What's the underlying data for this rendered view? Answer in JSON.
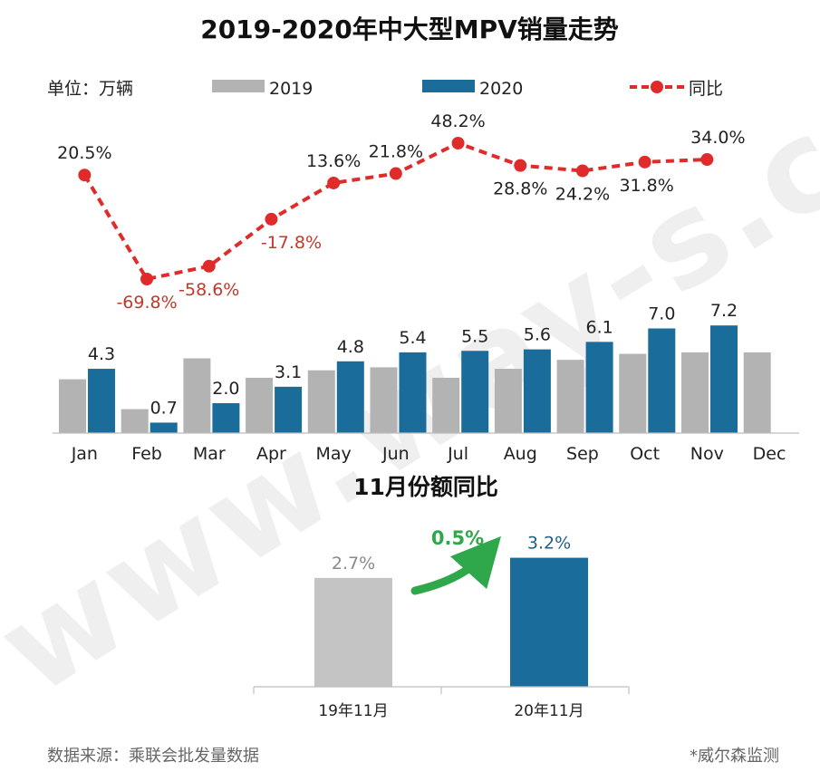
{
  "title": "2019-2020年中大型MPV销量走势",
  "unit_label": "单位：万辆",
  "legend": {
    "series_2019": "2019",
    "series_2020": "2020",
    "series_yoy": "同比"
  },
  "colors": {
    "bar_2019": "#b3b3b3",
    "bar_2020": "#1a6d9b",
    "line_yoy": "#e02b2b",
    "delta_arrow": "#2ea84b"
  },
  "watermark": "www.way-s.cn",
  "chart_data": [
    {
      "type": "bar+line",
      "title": "2019-2020年中大型MPV销量走势",
      "categories": [
        "Jan",
        "Feb",
        "Mar",
        "Apr",
        "May",
        "Jun",
        "Jul",
        "Aug",
        "Sep",
        "Oct",
        "Nov",
        "Dec"
      ],
      "series": [
        {
          "name": "2019",
          "values": [
            3.6,
            1.6,
            5.0,
            3.7,
            4.2,
            4.4,
            3.7,
            4.3,
            4.9,
            5.3,
            5.4,
            5.4
          ],
          "labels": [
            "",
            "",
            "",
            "",
            "",
            "",
            "",
            "",
            "",
            "",
            "",
            ""
          ]
        },
        {
          "name": "2020",
          "values": [
            4.3,
            0.7,
            2.0,
            3.1,
            4.8,
            5.4,
            5.5,
            5.6,
            6.1,
            7.0,
            7.2,
            null
          ],
          "labels": [
            "4.3",
            "0.7",
            "2.0",
            "3.1",
            "4.8",
            "5.4",
            "5.5",
            "5.6",
            "6.1",
            "7.0",
            "7.2",
            ""
          ]
        },
        {
          "name": "同比",
          "type": "line",
          "values": [
            20.5,
            -69.8,
            -58.6,
            -17.8,
            13.6,
            21.8,
            48.2,
            28.8,
            24.2,
            31.8,
            34.0,
            null
          ],
          "labels": [
            "20.5%",
            "-69.8%",
            "-58.6%",
            "-17.8%",
            "13.6%",
            "21.8%",
            "48.2%",
            "28.8%",
            "24.2%",
            "31.8%",
            "34.0%",
            ""
          ]
        }
      ],
      "ylabel": "万辆",
      "ylim": [
        0,
        10
      ],
      "yoy_range": [
        -80,
        60
      ]
    },
    {
      "type": "bar",
      "title": "11月份额同比",
      "categories": [
        "19年11月",
        "20年11月"
      ],
      "values": [
        2.7,
        3.2
      ],
      "labels": [
        "2.7%",
        "3.2%"
      ],
      "delta_label": "0.5%",
      "ylim": [
        0,
        4
      ]
    }
  ],
  "footer": {
    "source": "数据来源：乘联会批发量数据",
    "note": "*威尔森监测"
  }
}
